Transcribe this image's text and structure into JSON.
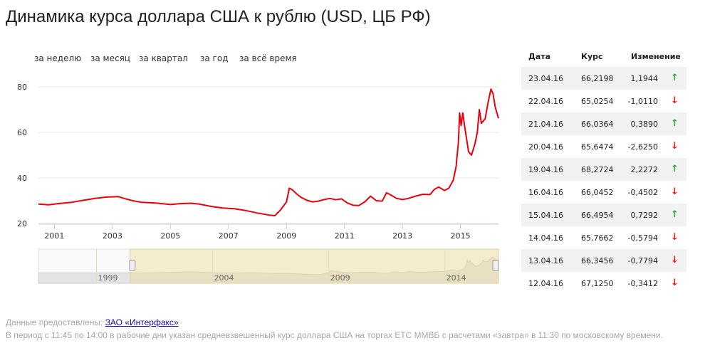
{
  "title": "Динамика курса доллара США к рублю (USD, ЦБ РФ)",
  "periods": [
    "за неделю",
    "за месяц",
    "за квартал",
    "за год",
    "за всё время"
  ],
  "chart_data": {
    "type": "line",
    "title": "Динамика курса доллара США к рублю (USD, ЦБ РФ)",
    "xlabel": "",
    "ylabel": "",
    "xlim": [
      2000.45,
      2016.31
    ],
    "ylim": [
      20,
      85
    ],
    "yticks": [
      20,
      40,
      60,
      80
    ],
    "xticks": [
      2001,
      2003,
      2005,
      2007,
      2009,
      2011,
      2013,
      2015
    ],
    "grid": "horizontal",
    "legend": "none",
    "color": "#e8000b",
    "series": [
      {
        "name": "",
        "points": [
          [
            2000.45,
            28.5
          ],
          [
            2000.8,
            28.2
          ],
          [
            2001.2,
            28.8
          ],
          [
            2001.6,
            29.3
          ],
          [
            2002.0,
            30.2
          ],
          [
            2002.4,
            31.0
          ],
          [
            2002.8,
            31.6
          ],
          [
            2003.2,
            31.8
          ],
          [
            2003.4,
            31.0
          ],
          [
            2003.7,
            30.0
          ],
          [
            2004.0,
            29.3
          ],
          [
            2004.5,
            29.0
          ],
          [
            2005.0,
            28.3
          ],
          [
            2005.3,
            28.7
          ],
          [
            2005.7,
            28.9
          ],
          [
            2006.0,
            28.5
          ],
          [
            2006.4,
            27.5
          ],
          [
            2006.8,
            26.8
          ],
          [
            2007.2,
            26.5
          ],
          [
            2007.6,
            25.7
          ],
          [
            2008.0,
            24.6
          ],
          [
            2008.4,
            23.7
          ],
          [
            2008.6,
            23.4
          ],
          [
            2008.8,
            26.0
          ],
          [
            2009.0,
            29.5
          ],
          [
            2009.1,
            35.5
          ],
          [
            2009.2,
            34.8
          ],
          [
            2009.35,
            33.0
          ],
          [
            2009.5,
            31.5
          ],
          [
            2009.7,
            30.2
          ],
          [
            2009.9,
            29.5
          ],
          [
            2010.1,
            29.8
          ],
          [
            2010.3,
            30.5
          ],
          [
            2010.5,
            31.0
          ],
          [
            2010.7,
            30.4
          ],
          [
            2010.9,
            30.8
          ],
          [
            2011.1,
            29.0
          ],
          [
            2011.3,
            28.0
          ],
          [
            2011.5,
            27.9
          ],
          [
            2011.7,
            29.5
          ],
          [
            2011.9,
            32.0
          ],
          [
            2012.1,
            30.0
          ],
          [
            2012.3,
            29.8
          ],
          [
            2012.45,
            33.5
          ],
          [
            2012.6,
            32.5
          ],
          [
            2012.8,
            31.0
          ],
          [
            2013.0,
            30.5
          ],
          [
            2013.2,
            31.0
          ],
          [
            2013.45,
            32.0
          ],
          [
            2013.7,
            32.8
          ],
          [
            2013.95,
            32.7
          ],
          [
            2014.1,
            35.0
          ],
          [
            2014.25,
            36.0
          ],
          [
            2014.45,
            34.5
          ],
          [
            2014.6,
            35.5
          ],
          [
            2014.75,
            39.0
          ],
          [
            2014.85,
            45.0
          ],
          [
            2014.93,
            56.0
          ],
          [
            2014.97,
            68.5
          ],
          [
            2015.02,
            63.0
          ],
          [
            2015.08,
            68.5
          ],
          [
            2015.15,
            62.0
          ],
          [
            2015.28,
            51.5
          ],
          [
            2015.38,
            50.0
          ],
          [
            2015.5,
            55.0
          ],
          [
            2015.58,
            60.0
          ],
          [
            2015.65,
            70.0
          ],
          [
            2015.72,
            64.0
          ],
          [
            2015.85,
            66.0
          ],
          [
            2015.95,
            73.0
          ],
          [
            2016.05,
            79.0
          ],
          [
            2016.12,
            77.0
          ],
          [
            2016.2,
            71.0
          ],
          [
            2016.31,
            66.2
          ]
        ]
      }
    ],
    "navigator": {
      "ticks": [
        1999,
        2004,
        2009,
        2014
      ],
      "range": [
        1996.5,
        2016.31
      ],
      "selection": [
        2000.45,
        2016.31
      ]
    }
  },
  "table": {
    "headers": {
      "date": "Дата",
      "rate": "Курс",
      "change": "Изменение"
    },
    "rows": [
      {
        "date": "23.04.16",
        "rate": "66,2198",
        "change": "1,1944",
        "dir": "up"
      },
      {
        "date": "22.04.16",
        "rate": "65,0254",
        "change": "-1,0110",
        "dir": "down"
      },
      {
        "date": "21.04.16",
        "rate": "66,0364",
        "change": "0,3890",
        "dir": "up"
      },
      {
        "date": "20.04.16",
        "rate": "65,6474",
        "change": "-2,6250",
        "dir": "down"
      },
      {
        "date": "19.04.16",
        "rate": "68,2724",
        "change": "2,2272",
        "dir": "up"
      },
      {
        "date": "16.04.16",
        "rate": "66,0452",
        "change": "-0,4502",
        "dir": "down"
      },
      {
        "date": "15.04.16",
        "rate": "66,4954",
        "change": "0,7292",
        "dir": "up"
      },
      {
        "date": "14.04.16",
        "rate": "65,7662",
        "change": "-0,5794",
        "dir": "down"
      },
      {
        "date": "13.04.16",
        "rate": "66,3456",
        "change": "-0,7794",
        "dir": "down"
      },
      {
        "date": "12.04.16",
        "rate": "67,1250",
        "change": "-0,3412",
        "dir": "down"
      }
    ],
    "arrows": {
      "up": "↑",
      "down": "↓"
    }
  },
  "footer": {
    "source_prefix": "Данные предоставлены: ",
    "source_link": "ЗАО «Интерфакс»",
    "note": "В период с 11:45 по 14:00 в рабочие дни указан средневзвешенный курс доллара США на торгах ЕТС ММВБ с расчетами «завтра» в 11:30 по московскому времени."
  }
}
